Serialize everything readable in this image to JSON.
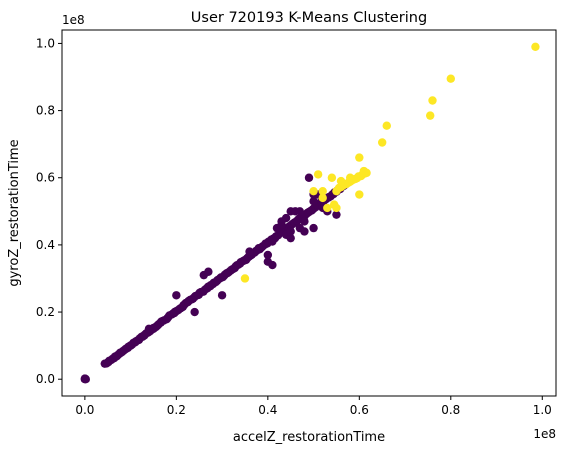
{
  "chart_data": {
    "type": "scatter",
    "title": "User 720193 K-Means Clustering",
    "xlabel": "accelZ_restorationTime",
    "ylabel": "gyroZ_restorationTime",
    "x_offset_text": "1e8",
    "y_offset_text": "1e8",
    "xlim": [
      -0.05,
      1.03
    ],
    "ylim": [
      -0.05,
      1.04
    ],
    "x_ticks": [
      0.0,
      0.2,
      0.4,
      0.6,
      0.8,
      1.0
    ],
    "x_tick_labels": [
      "0.0",
      "0.2",
      "0.4",
      "0.6",
      "0.8",
      "1.0"
    ],
    "y_ticks": [
      0.0,
      0.2,
      0.4,
      0.6,
      0.8,
      1.0
    ],
    "y_tick_labels": [
      "0.0",
      "0.2",
      "0.4",
      "0.6",
      "0.8",
      "1.0"
    ],
    "grid": false,
    "legend": "none",
    "series": [
      {
        "color": "#440154",
        "segments": [
          {
            "x": [
              0.045,
              0.57
            ],
            "y": [
              0.045,
              0.58
            ],
            "step": 0.003,
            "jitter": 0.003
          }
        ],
        "points": [
          [
            0.0,
            0.0
          ],
          [
            0.0,
            0.002
          ],
          [
            0.001,
            0.001
          ],
          [
            0.002,
            0.0
          ],
          [
            0.05,
            0.05
          ],
          [
            0.07,
            0.07
          ],
          [
            0.08,
            0.08
          ],
          [
            0.1,
            0.1
          ],
          [
            0.11,
            0.11
          ],
          [
            0.13,
            0.13
          ],
          [
            0.14,
            0.15
          ],
          [
            0.15,
            0.15
          ],
          [
            0.2,
            0.25
          ],
          [
            0.24,
            0.2
          ],
          [
            0.26,
            0.31
          ],
          [
            0.27,
            0.32
          ],
          [
            0.3,
            0.25
          ],
          [
            0.36,
            0.38
          ],
          [
            0.38,
            0.39
          ],
          [
            0.4,
            0.35
          ],
          [
            0.4,
            0.37
          ],
          [
            0.41,
            0.34
          ],
          [
            0.41,
            0.41
          ],
          [
            0.42,
            0.45
          ],
          [
            0.43,
            0.46
          ],
          [
            0.44,
            0.48
          ],
          [
            0.45,
            0.5
          ],
          [
            0.46,
            0.5
          ],
          [
            0.44,
            0.43
          ],
          [
            0.45,
            0.42
          ],
          [
            0.47,
            0.5
          ],
          [
            0.47,
            0.45
          ],
          [
            0.48,
            0.47
          ],
          [
            0.49,
            0.6
          ],
          [
            0.5,
            0.53
          ],
          [
            0.5,
            0.55
          ],
          [
            0.51,
            0.55
          ],
          [
            0.52,
            0.51
          ],
          [
            0.53,
            0.5
          ],
          [
            0.55,
            0.49
          ],
          [
            0.5,
            0.45
          ],
          [
            0.48,
            0.44
          ],
          [
            0.43,
            0.47
          ],
          [
            0.45,
            0.44
          ]
        ]
      },
      {
        "color": "#fde725",
        "segments": [
          {
            "x": [
              0.555,
              0.615
            ],
            "y": [
              0.57,
              0.615
            ],
            "step": 0.004,
            "jitter": 0.002
          }
        ],
        "points": [
          [
            0.35,
            0.3
          ],
          [
            0.5,
            0.56
          ],
          [
            0.51,
            0.61
          ],
          [
            0.52,
            0.56
          ],
          [
            0.52,
            0.54
          ],
          [
            0.53,
            0.51
          ],
          [
            0.54,
            0.6
          ],
          [
            0.545,
            0.52
          ],
          [
            0.55,
            0.51
          ],
          [
            0.55,
            0.56
          ],
          [
            0.56,
            0.59
          ],
          [
            0.58,
            0.6
          ],
          [
            0.6,
            0.55
          ],
          [
            0.6,
            0.66
          ],
          [
            0.61,
            0.62
          ],
          [
            0.65,
            0.705
          ],
          [
            0.66,
            0.755
          ],
          [
            0.755,
            0.785
          ],
          [
            0.76,
            0.83
          ],
          [
            0.8,
            0.895
          ],
          [
            0.985,
            0.99
          ]
        ]
      }
    ]
  }
}
